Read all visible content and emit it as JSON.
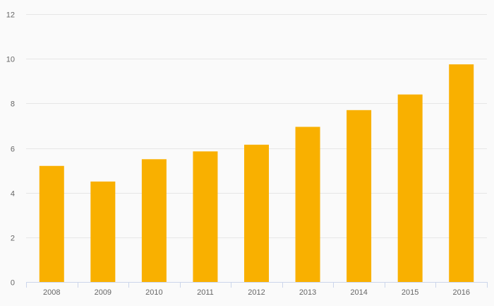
{
  "colors": {
    "background": "#fafafa",
    "bar": "#f9b000",
    "grid": "#e6e6e6",
    "axis": "#ccd6eb",
    "tick_text": "#666666"
  },
  "chart_data": {
    "type": "bar",
    "title": "",
    "xlabel": "",
    "ylabel": "",
    "categories": [
      "2008",
      "2009",
      "2010",
      "2011",
      "2012",
      "2013",
      "2014",
      "2015",
      "2016"
    ],
    "values": [
      5.2,
      4.5,
      5.5,
      5.85,
      6.15,
      6.95,
      7.7,
      8.4,
      9.75
    ],
    "ylim": [
      0,
      12
    ],
    "y_ticks": [
      0,
      2,
      4,
      6,
      8,
      10,
      12
    ],
    "y_tick_labels": [
      "0",
      "2",
      "4",
      "6",
      "8",
      "10",
      "12"
    ],
    "grid": true,
    "legend": "none"
  }
}
